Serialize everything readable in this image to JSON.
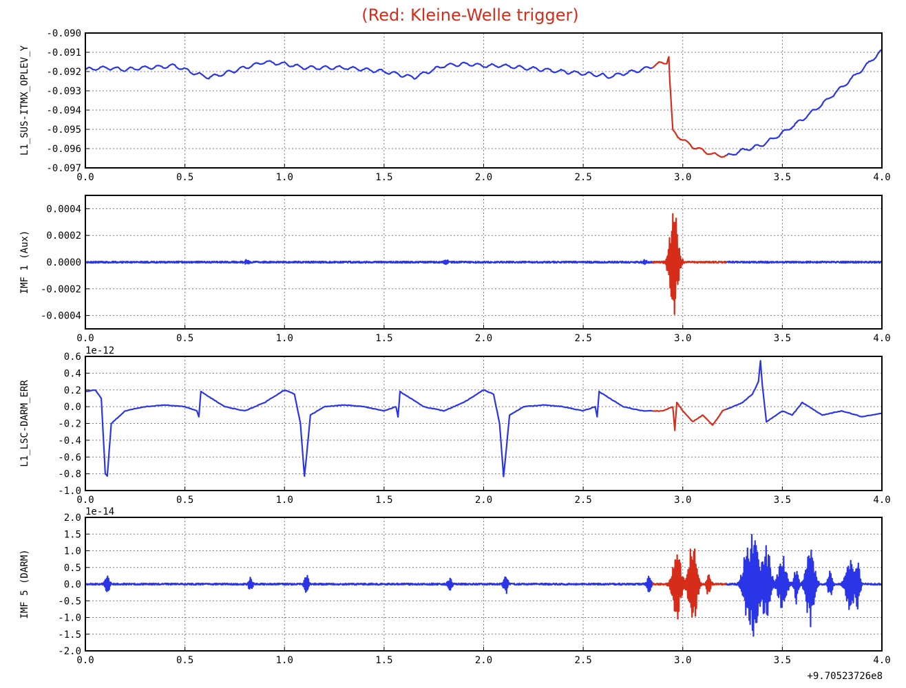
{
  "figure": {
    "title": "(Red: Kleine-Welle trigger)",
    "x_offset_label": "+9.70523726e8",
    "colors": {
      "normal": "#2a35e8",
      "trigger": "#d62c1a",
      "title": "#d62c1a"
    }
  },
  "chart_data": [
    {
      "type": "line",
      "ylabel": "L1_SUS-ITMX_OPLEV_Y",
      "xlim": [
        0,
        4
      ],
      "ylim": [
        -0.097,
        -0.09
      ],
      "xticks": [
        "0.0",
        "0.5",
        "1.0",
        "1.5",
        "2.0",
        "2.5",
        "3.0",
        "3.5",
        "4.0"
      ],
      "yticks": [
        "-0.090",
        "-0.091",
        "-0.092",
        "-0.093",
        "-0.094",
        "-0.095",
        "-0.096",
        "-0.097"
      ],
      "exponent_label": "",
      "grid": true,
      "trigger_window": [
        2.85,
        3.22
      ],
      "series": [
        {
          "color": "blue/red",
          "x": [
            0,
            0.1,
            0.2,
            0.3,
            0.45,
            0.55,
            0.62,
            0.7,
            0.8,
            0.9,
            1.0,
            1.1,
            1.2,
            1.3,
            1.4,
            1.5,
            1.6,
            1.65,
            1.7,
            1.8,
            1.9,
            2.0,
            2.1,
            2.2,
            2.3,
            2.4,
            2.5,
            2.6,
            2.62,
            2.7,
            2.8,
            2.88,
            2.92,
            2.93,
            2.935,
            2.95,
            2.97,
            3.05,
            3.15,
            3.22,
            3.3,
            3.4,
            3.5,
            3.6,
            3.7,
            3.8,
            3.9,
            4.0
          ],
          "y": [
            -0.0919,
            -0.0918,
            -0.0919,
            -0.0918,
            -0.0917,
            -0.0921,
            -0.0923,
            -0.0921,
            -0.0918,
            -0.0915,
            -0.0916,
            -0.0918,
            -0.0918,
            -0.0918,
            -0.0919,
            -0.092,
            -0.0922,
            -0.0923,
            -0.0921,
            -0.0917,
            -0.0916,
            -0.0917,
            -0.0917,
            -0.0918,
            -0.0919,
            -0.092,
            -0.0921,
            -0.0922,
            -0.0923,
            -0.0921,
            -0.0919,
            -0.0916,
            -0.0915,
            -0.0912,
            -0.0925,
            -0.0951,
            -0.0953,
            -0.0959,
            -0.0963,
            -0.0964,
            -0.0961,
            -0.0958,
            -0.0952,
            -0.0945,
            -0.0937,
            -0.0928,
            -0.0919,
            -0.0909
          ]
        }
      ]
    },
    {
      "type": "line",
      "ylabel": "IMF 1 (Aux)",
      "xlim": [
        0,
        4
      ],
      "ylim": [
        -0.0005,
        0.0005
      ],
      "xticks": [
        "0.0",
        "0.5",
        "1.0",
        "1.5",
        "2.0",
        "2.5",
        "3.0",
        "3.5",
        "4.0"
      ],
      "yticks": [
        "0.0004",
        "0.0002",
        "0.0000",
        "-0.0002",
        "-0.0004"
      ],
      "exponent_label": "",
      "grid": true,
      "trigger_window": [
        2.85,
        3.22
      ],
      "bursts": [
        {
          "center": 0.81,
          "amplitude": 2e-05
        },
        {
          "center": 1.81,
          "amplitude": 2e-05
        },
        {
          "center": 2.81,
          "amplitude": 2e-05
        },
        {
          "center": 2.955,
          "amplitude": 0.00043
        }
      ]
    },
    {
      "type": "line",
      "ylabel": "L1_LSC-DARM_ERR",
      "xlim": [
        0,
        4
      ],
      "ylim": [
        -1.0,
        0.6
      ],
      "xticks": [
        "0.0",
        "0.5",
        "1.0",
        "1.5",
        "2.0",
        "2.5",
        "3.0",
        "3.5",
        "4.0"
      ],
      "yticks": [
        "0.6",
        "0.4",
        "0.2",
        "0.0",
        "-0.2",
        "-0.4",
        "-0.6",
        "-0.8",
        "-1.0"
      ],
      "exponent_label": "1e-12",
      "grid": true,
      "trigger_window": [
        2.85,
        3.22
      ],
      "series": [
        {
          "color": "blue/red",
          "x": [
            0,
            0.05,
            0.08,
            0.1,
            0.11,
            0.13,
            0.2,
            0.3,
            0.4,
            0.5,
            0.56,
            0.57,
            0.58,
            0.6,
            0.7,
            0.8,
            0.9,
            1.0,
            1.05,
            1.08,
            1.1,
            1.11,
            1.13,
            1.2,
            1.3,
            1.4,
            1.5,
            1.56,
            1.57,
            1.58,
            1.6,
            1.7,
            1.8,
            1.9,
            2.0,
            2.05,
            2.08,
            2.1,
            2.11,
            2.13,
            2.2,
            2.3,
            2.4,
            2.5,
            2.56,
            2.57,
            2.58,
            2.6,
            2.7,
            2.8,
            2.9,
            2.95,
            2.96,
            2.97,
            3.0,
            3.05,
            3.1,
            3.15,
            3.2,
            3.25,
            3.3,
            3.35,
            3.38,
            3.39,
            3.4,
            3.42,
            3.5,
            3.55,
            3.6,
            3.7,
            3.8,
            3.9,
            4.0
          ],
          "y": [
            0.18,
            0.2,
            0.1,
            -0.8,
            -0.83,
            -0.2,
            -0.05,
            0.0,
            0.02,
            0.0,
            -0.05,
            -0.12,
            0.18,
            0.15,
            0.0,
            -0.05,
            0.05,
            0.2,
            0.15,
            -0.2,
            -0.83,
            -0.6,
            -0.1,
            0.0,
            0.02,
            0.0,
            -0.05,
            0.0,
            -0.12,
            0.18,
            0.15,
            0.0,
            -0.05,
            0.05,
            0.2,
            0.15,
            -0.2,
            -0.83,
            -0.6,
            -0.1,
            0.0,
            0.02,
            0.0,
            -0.05,
            0.0,
            -0.12,
            0.18,
            0.15,
            0.0,
            -0.05,
            -0.05,
            0.0,
            -0.28,
            0.05,
            -0.05,
            -0.18,
            -0.1,
            -0.22,
            -0.05,
            0.0,
            0.05,
            0.15,
            0.3,
            0.55,
            0.25,
            -0.18,
            -0.05,
            -0.1,
            0.05,
            -0.1,
            -0.05,
            -0.12,
            -0.08
          ]
        }
      ]
    },
    {
      "type": "line",
      "ylabel": "IMF 5 (DARM)",
      "xlim": [
        0,
        4
      ],
      "ylim": [
        -2.0,
        2.0
      ],
      "xticks": [
        "0.0",
        "0.5",
        "1.0",
        "1.5",
        "2.0",
        "2.5",
        "3.0",
        "3.5",
        "4.0"
      ],
      "yticks": [
        "2.0",
        "1.5",
        "1.0",
        "0.5",
        "0.0",
        "-0.5",
        "-1.0",
        "-1.5",
        "-2.0"
      ],
      "exponent_label": "1e-14",
      "grid": true,
      "trigger_window": [
        2.85,
        3.22
      ],
      "bursts": [
        {
          "center": 0.11,
          "amplitude": 0.35
        },
        {
          "center": 0.83,
          "amplitude": 0.22
        },
        {
          "center": 1.11,
          "amplitude": 0.35
        },
        {
          "center": 1.83,
          "amplitude": 0.22
        },
        {
          "center": 2.11,
          "amplitude": 0.35
        },
        {
          "center": 2.83,
          "amplitude": 0.3
        },
        {
          "center": 2.97,
          "amplitude": 1.2
        },
        {
          "center": 3.05,
          "amplitude": 1.4
        },
        {
          "center": 3.13,
          "amplitude": 0.4
        },
        {
          "center": 3.32,
          "amplitude": 1.0
        },
        {
          "center": 3.36,
          "amplitude": 1.9
        },
        {
          "center": 3.42,
          "amplitude": 1.2
        },
        {
          "center": 3.5,
          "amplitude": 0.9
        },
        {
          "center": 3.57,
          "amplitude": 0.6
        },
        {
          "center": 3.64,
          "amplitude": 1.3
        },
        {
          "center": 3.74,
          "amplitude": 0.5
        },
        {
          "center": 3.84,
          "amplitude": 0.9
        },
        {
          "center": 3.88,
          "amplitude": 0.8
        }
      ]
    }
  ]
}
